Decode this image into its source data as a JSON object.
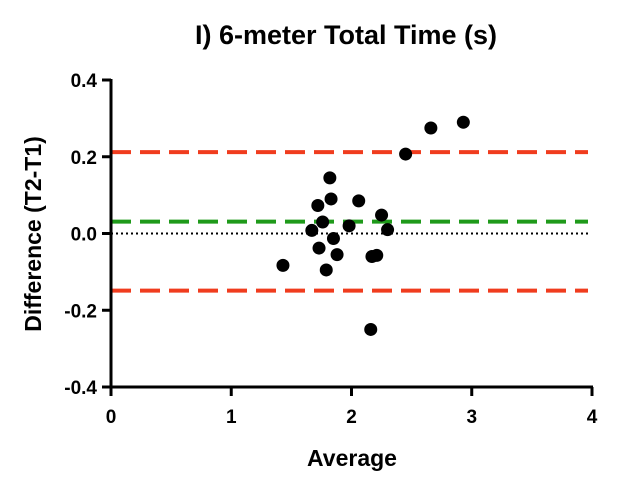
{
  "chart_data": {
    "type": "scatter",
    "title": "I) 6-meter Total Time (s)",
    "xlabel": "Average",
    "ylabel": "Difference (T2-T1)",
    "xlim": [
      0,
      4
    ],
    "ylim": [
      -0.4,
      0.4
    ],
    "x_ticks": [
      0,
      1,
      2,
      3,
      4
    ],
    "x_tick_labels": [
      "0",
      "1",
      "2",
      "3",
      "4"
    ],
    "y_ticks": [
      0.4,
      0.2,
      0.0,
      -0.2,
      -0.4
    ],
    "y_tick_labels": [
      "0.4",
      "0.2",
      "0.0",
      "-0.2",
      "-0.4"
    ],
    "grid": false,
    "points": [
      {
        "x": 1.43,
        "y": -0.083
      },
      {
        "x": 1.67,
        "y": 0.008
      },
      {
        "x": 1.72,
        "y": 0.073
      },
      {
        "x": 1.73,
        "y": -0.038
      },
      {
        "x": 1.76,
        "y": 0.03
      },
      {
        "x": 1.79,
        "y": -0.095
      },
      {
        "x": 1.82,
        "y": 0.145
      },
      {
        "x": 1.83,
        "y": 0.09
      },
      {
        "x": 1.85,
        "y": -0.013
      },
      {
        "x": 1.88,
        "y": -0.055
      },
      {
        "x": 1.98,
        "y": 0.02
      },
      {
        "x": 2.06,
        "y": 0.085
      },
      {
        "x": 2.16,
        "y": -0.25
      },
      {
        "x": 2.17,
        "y": -0.06
      },
      {
        "x": 2.21,
        "y": -0.057
      },
      {
        "x": 2.25,
        "y": 0.048
      },
      {
        "x": 2.3,
        "y": 0.01
      },
      {
        "x": 2.45,
        "y": 0.207
      },
      {
        "x": 2.66,
        "y": 0.275
      },
      {
        "x": 2.93,
        "y": 0.29
      }
    ],
    "reference_lines": [
      {
        "y": 0.212,
        "color": "#f03c1e",
        "style": "dashed"
      },
      {
        "y": 0.031,
        "color": "#1f9a1a",
        "style": "dashed"
      },
      {
        "y": -0.149,
        "color": "#f03c1e",
        "style": "dashed"
      },
      {
        "y": 0.0,
        "color": "#000000",
        "style": "dotted"
      }
    ],
    "point_color": "#000000"
  }
}
